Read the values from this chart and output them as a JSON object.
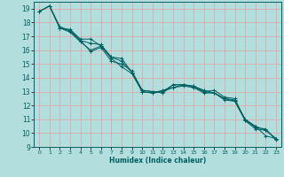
{
  "xlabel": "Humidex (Indice chaleur)",
  "bg_color": "#b2dede",
  "grid_color": "#e8a0a0",
  "line_color": "#006060",
  "xlim": [
    -0.5,
    23.5
  ],
  "ylim": [
    9,
    19.5
  ],
  "yticks": [
    9,
    10,
    11,
    12,
    13,
    14,
    15,
    16,
    17,
    18,
    19
  ],
  "xticks": [
    0,
    1,
    2,
    3,
    4,
    5,
    6,
    7,
    8,
    9,
    10,
    11,
    12,
    13,
    14,
    15,
    16,
    17,
    18,
    19,
    20,
    21,
    22,
    23
  ],
  "series": [
    {
      "x": [
        0,
        1,
        2,
        3,
        4,
        5,
        6,
        7,
        8,
        9,
        10,
        11,
        12,
        13,
        14,
        15,
        16,
        17,
        18,
        19,
        20,
        21,
        22,
        23
      ],
      "y": [
        18.8,
        19.2,
        17.7,
        17.4,
        16.7,
        15.9,
        16.2,
        15.2,
        15.0,
        14.5,
        13.1,
        13.0,
        13.0,
        13.5,
        13.5,
        13.4,
        13.0,
        13.1,
        12.6,
        12.5,
        10.9,
        10.5,
        9.8,
        9.6
      ]
    },
    {
      "x": [
        0,
        1,
        2,
        3,
        4,
        5,
        6,
        7,
        8,
        9,
        10,
        11,
        12,
        13,
        14,
        15,
        16,
        17,
        18,
        19,
        20,
        21,
        22,
        23
      ],
      "y": [
        18.8,
        19.2,
        17.6,
        17.5,
        16.8,
        16.8,
        16.3,
        15.5,
        15.2,
        14.4,
        13.0,
        12.9,
        13.1,
        13.3,
        13.5,
        13.4,
        13.1,
        12.9,
        12.4,
        12.3,
        11.0,
        10.4,
        10.3,
        9.5
      ]
    },
    {
      "x": [
        0,
        1,
        2,
        3,
        4,
        5,
        6,
        7,
        8,
        9,
        10,
        11,
        12,
        13,
        14,
        15,
        16,
        17,
        18,
        19,
        20,
        21,
        22,
        23
      ],
      "y": [
        18.8,
        19.2,
        17.6,
        17.4,
        16.7,
        16.5,
        16.4,
        15.5,
        15.4,
        14.4,
        13.1,
        13.0,
        12.9,
        13.5,
        13.5,
        13.3,
        12.9,
        12.9,
        12.5,
        12.4,
        11.0,
        10.5,
        10.2,
        9.6
      ]
    },
    {
      "x": [
        1,
        2,
        3,
        4,
        5,
        6,
        7,
        8,
        9,
        10,
        11,
        12,
        13,
        14,
        15,
        16,
        17,
        18,
        19,
        20,
        21,
        22,
        23
      ],
      "y": [
        19.2,
        17.6,
        17.3,
        16.6,
        16.0,
        16.3,
        15.4,
        14.8,
        14.3,
        13.0,
        12.9,
        13.0,
        13.3,
        13.4,
        13.3,
        13.0,
        12.9,
        12.5,
        12.3,
        10.9,
        10.3,
        10.2,
        9.6
      ]
    }
  ]
}
